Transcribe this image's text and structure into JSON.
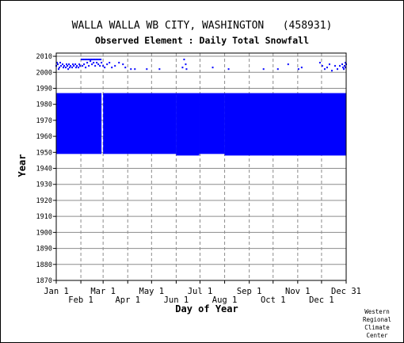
{
  "chart_data": {
    "type": "scatter",
    "title": "WALLA WALLA WB CITY, WASHINGTON   (458931)",
    "subtitle": "Observed Element : Daily Total Snowfall",
    "xlabel": "Day of Year",
    "ylabel": "Year",
    "xlim": [
      1,
      366
    ],
    "ylim": [
      1870,
      2012
    ],
    "y_ticks": [
      1870,
      1880,
      1890,
      1900,
      1910,
      1920,
      1930,
      1940,
      1950,
      1960,
      1970,
      1980,
      1990,
      2000,
      2010
    ],
    "x_ticks_upper": [
      {
        "label": "Jan 1",
        "day": 1
      },
      {
        "label": "Mar 1",
        "day": 60
      },
      {
        "label": "May 1",
        "day": 121
      },
      {
        "label": "Jul 1",
        "day": 182
      },
      {
        "label": "Sep 1",
        "day": 244
      },
      {
        "label": "Nov 1",
        "day": 305
      },
      {
        "label": "Dec 31",
        "day": 366
      }
    ],
    "x_ticks_lower": [
      {
        "label": "Feb 1",
        "day": 32
      },
      {
        "label": "Apr 1",
        "day": 91
      },
      {
        "label": "Jun 1",
        "day": 152
      },
      {
        "label": "Aug 1",
        "day": 213
      },
      {
        "label": "Oct 1",
        "day": 274
      },
      {
        "label": "Dec 1",
        "day": 335
      }
    ],
    "grid": true,
    "color": "#0000ff",
    "filled_regions": [
      {
        "day_start": 1,
        "day_end": 58,
        "year_start": 1949,
        "year_end": 1987
      },
      {
        "day_start": 60,
        "day_end": 152,
        "year_start": 1949,
        "year_end": 1987
      },
      {
        "day_start": 152,
        "day_end": 181,
        "year_start": 1948,
        "year_end": 1987
      },
      {
        "day_start": 181,
        "day_end": 213,
        "year_start": 1949,
        "year_end": 1987
      },
      {
        "day_start": 213,
        "day_end": 366,
        "year_start": 1948,
        "year_end": 1987
      }
    ],
    "points": [
      {
        "day": 1,
        "year": 2004
      },
      {
        "day": 3,
        "year": 2005
      },
      {
        "day": 5,
        "year": 2003
      },
      {
        "day": 7,
        "year": 2004
      },
      {
        "day": 9,
        "year": 2005
      },
      {
        "day": 11,
        "year": 2004
      },
      {
        "day": 13,
        "year": 2003
      },
      {
        "day": 15,
        "year": 2004
      },
      {
        "day": 17,
        "year": 2005
      },
      {
        "day": 19,
        "year": 2004
      },
      {
        "day": 21,
        "year": 2003
      },
      {
        "day": 23,
        "year": 2004
      },
      {
        "day": 25,
        "year": 2005
      },
      {
        "day": 27,
        "year": 2004
      },
      {
        "day": 29,
        "year": 2003
      },
      {
        "day": 31,
        "year": 2004
      },
      {
        "day": 2,
        "year": 2006
      },
      {
        "day": 6,
        "year": 2006
      },
      {
        "day": 10,
        "year": 2003
      },
      {
        "day": 14,
        "year": 2005
      },
      {
        "day": 18,
        "year": 2003
      },
      {
        "day": 22,
        "year": 2005
      },
      {
        "day": 26,
        "year": 2003
      },
      {
        "day": 30,
        "year": 2005
      },
      {
        "day": 4,
        "year": 2002
      },
      {
        "day": 16,
        "year": 2002
      },
      {
        "day": 33,
        "year": 2008
      },
      {
        "day": 35,
        "year": 2008
      },
      {
        "day": 37,
        "year": 2008
      },
      {
        "day": 39,
        "year": 2008
      },
      {
        "day": 41,
        "year": 2008
      },
      {
        "day": 43,
        "year": 2008
      },
      {
        "day": 45,
        "year": 2008
      },
      {
        "day": 47,
        "year": 2008
      },
      {
        "day": 49,
        "year": 2008
      },
      {
        "day": 51,
        "year": 2008
      },
      {
        "day": 53,
        "year": 2008
      },
      {
        "day": 55,
        "year": 2008
      },
      {
        "day": 57,
        "year": 2008
      },
      {
        "day": 34,
        "year": 2004
      },
      {
        "day": 36,
        "year": 2005
      },
      {
        "day": 38,
        "year": 2003
      },
      {
        "day": 40,
        "year": 2006
      },
      {
        "day": 42,
        "year": 2004
      },
      {
        "day": 44,
        "year": 2007
      },
      {
        "day": 46,
        "year": 2005
      },
      {
        "day": 48,
        "year": 2006
      },
      {
        "day": 50,
        "year": 2004
      },
      {
        "day": 52,
        "year": 2006
      },
      {
        "day": 54,
        "year": 2005
      },
      {
        "day": 56,
        "year": 2004
      },
      {
        "day": 58,
        "year": 2006
      },
      {
        "day": 60,
        "year": 2004
      },
      {
        "day": 62,
        "year": 2003
      },
      {
        "day": 65,
        "year": 2005
      },
      {
        "day": 68,
        "year": 2006
      },
      {
        "day": 71,
        "year": 2003
      },
      {
        "day": 75,
        "year": 2004
      },
      {
        "day": 80,
        "year": 2006
      },
      {
        "day": 85,
        "year": 2005
      },
      {
        "day": 88,
        "year": 2003
      },
      {
        "day": 95,
        "year": 2002
      },
      {
        "day": 100,
        "year": 2002
      },
      {
        "day": 115,
        "year": 2002
      },
      {
        "day": 131,
        "year": 2002
      },
      {
        "day": 160,
        "year": 2003
      },
      {
        "day": 162,
        "year": 2008
      },
      {
        "day": 164,
        "year": 2005
      },
      {
        "day": 165,
        "year": 2002
      },
      {
        "day": 198,
        "year": 2003
      },
      {
        "day": 218,
        "year": 2002
      },
      {
        "day": 262,
        "year": 2002
      },
      {
        "day": 280,
        "year": 2002
      },
      {
        "day": 293,
        "year": 2005
      },
      {
        "day": 306,
        "year": 2002
      },
      {
        "day": 310,
        "year": 2003
      },
      {
        "day": 333,
        "year": 2006
      },
      {
        "day": 336,
        "year": 2004
      },
      {
        "day": 339,
        "year": 2002
      },
      {
        "day": 342,
        "year": 2003
      },
      {
        "day": 345,
        "year": 2005
      },
      {
        "day": 348,
        "year": 2001
      },
      {
        "day": 352,
        "year": 2004
      },
      {
        "day": 355,
        "year": 2002
      },
      {
        "day": 358,
        "year": 2004
      },
      {
        "day": 361,
        "year": 2005
      },
      {
        "day": 362,
        "year": 2003
      },
      {
        "day": 363,
        "year": 2002
      },
      {
        "day": 364,
        "year": 2004
      },
      {
        "day": 365,
        "year": 2003
      },
      {
        "day": 366,
        "year": 2005
      },
      {
        "day": 365,
        "year": 2006
      }
    ]
  },
  "credit": [
    "Western",
    "Regional",
    "Climate",
    "Center"
  ]
}
